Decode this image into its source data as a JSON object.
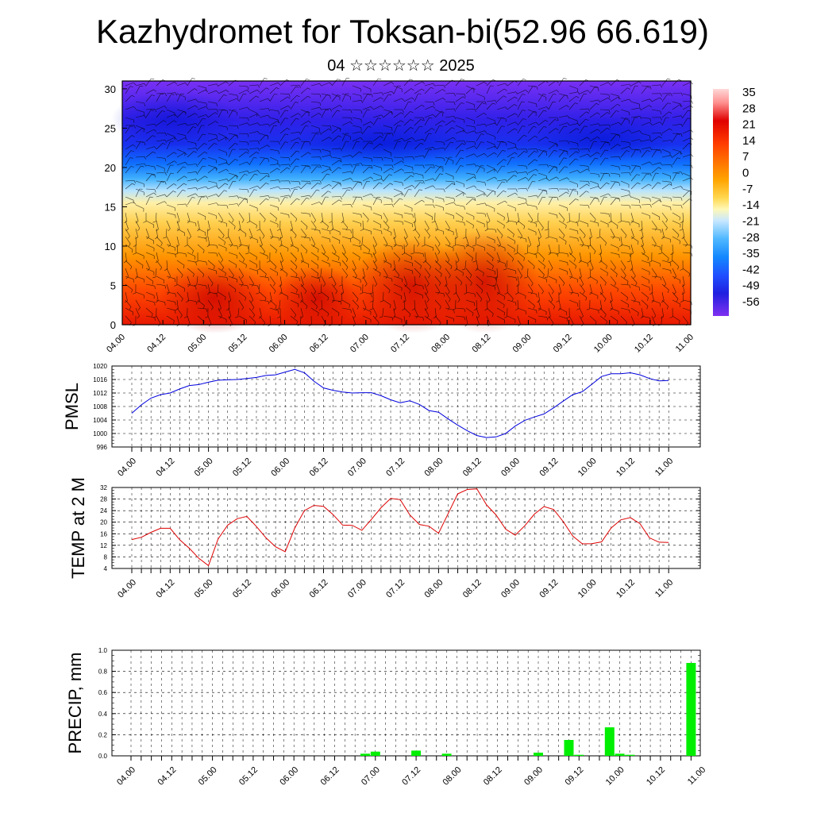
{
  "header": {
    "title": "Kazhydromet for Toksan-bi(52.96 66.619)",
    "subtitle": "04 ☆☆☆☆☆☆ 2025"
  },
  "chart_data": [
    {
      "type": "heatmap",
      "title": "",
      "xlabel": "",
      "ylabel": "",
      "x_tick_labels": [
        "04.00",
        "04.12",
        "05.00",
        "05.12",
        "06.00",
        "06.12",
        "07.00",
        "07.12",
        "08.00",
        "08.12",
        "09.00",
        "09.12",
        "10.00",
        "10.12",
        "11.00"
      ],
      "y_ticks": [
        0,
        5,
        10,
        15,
        20,
        25,
        30
      ],
      "ylim": [
        0,
        31
      ],
      "colorbar_labels": [
        "35",
        "28",
        "21",
        "14",
        "7",
        "0",
        "-7",
        "-14",
        "-21",
        "-28",
        "-35",
        "-42",
        "-49",
        "-56"
      ],
      "colorscale": [
        "#ffffff",
        "#ff8888",
        "#e00000",
        "#ff3000",
        "#ff7000",
        "#ffa000",
        "#ffd040",
        "#fff8b0",
        "#c8e8ff",
        "#60c0ff",
        "#1090ff",
        "#2050ff",
        "#2020e0",
        "#6020ff",
        "#8030f0"
      ],
      "overlay": "wind barbs and contour lines",
      "approx_level_temperature_c": [
        {
          "level": 0,
          "temp": 18
        },
        {
          "level": 5,
          "temp": 14
        },
        {
          "level": 10,
          "temp": 4
        },
        {
          "level": 15,
          "temp": -10
        },
        {
          "level": 20,
          "temp": -40
        },
        {
          "level": 25,
          "temp": -52
        },
        {
          "level": 30,
          "temp": -58
        }
      ]
    },
    {
      "type": "line",
      "title": "",
      "ylabel": "PMSL",
      "xlabel": "",
      "ylim": [
        996,
        1020
      ],
      "y_ticks": [
        996,
        1000,
        1004,
        1008,
        1012,
        1016,
        1020
      ],
      "x_tick_labels": [
        "04.00",
        "04.12",
        "05.00",
        "05.12",
        "06.00",
        "06.12",
        "07.00",
        "07.12",
        "08.00",
        "08.12",
        "09.00",
        "09.12",
        "10.00",
        "10.12",
        "11.00"
      ],
      "color": "#0000dd",
      "series": [
        {
          "values": [
            1006,
            1008.5,
            1010.5,
            1011.5,
            1012,
            1013.2,
            1014.2,
            1014.5,
            1015.2,
            1015.8,
            1015.9,
            1016,
            1016.3,
            1016.6,
            1017.2,
            1017.4,
            1018.2,
            1019,
            1018,
            1015.5,
            1013.5,
            1012.8,
            1012.3,
            1012,
            1012.1,
            1012.1,
            1011.2,
            1010,
            1009.1,
            1009.7,
            1008.6,
            1006.8,
            1006.3,
            1004.3,
            1002.5,
            1000.8,
            999.4,
            998.8,
            999,
            1000,
            1002.2,
            1003.9,
            1004.9,
            1005.8,
            1007.6,
            1009.6,
            1011.5,
            1012.4,
            1014.6,
            1016.9,
            1017.7,
            1017.7,
            1018,
            1017.4,
            1016.3,
            1015.6,
            1015.7
          ]
        }
      ]
    },
    {
      "type": "line",
      "title": "",
      "ylabel": "TEMP at 2 M",
      "xlabel": "",
      "ylim": [
        4,
        32
      ],
      "y_ticks": [
        4,
        8,
        12,
        16,
        20,
        24,
        28,
        32
      ],
      "x_tick_labels": [
        "04.00",
        "04.12",
        "05.00",
        "05.12",
        "06.00",
        "06.12",
        "07.00",
        "07.12",
        "08.00",
        "08.12",
        "09.00",
        "09.12",
        "10.00",
        "10.12",
        "11.00"
      ],
      "color": "#dd0000",
      "series": [
        {
          "values": [
            14,
            14.8,
            16.5,
            17.9,
            17.9,
            13.9,
            11,
            7.5,
            5,
            14.2,
            19,
            21.2,
            22,
            18.5,
            14.6,
            11.5,
            9.8,
            18,
            24,
            25.8,
            25.5,
            22.6,
            19,
            18.9,
            17.2,
            21,
            25,
            28.2,
            27.8,
            22.5,
            19.2,
            18.6,
            16.2,
            23,
            29.8,
            31.3,
            31.5,
            26,
            22.5,
            17.6,
            15.5,
            18.8,
            22.8,
            25.4,
            24.4,
            20.2,
            15.2,
            12.5,
            12.6,
            13.2,
            18,
            20.8,
            21.6,
            19.5,
            14.6,
            13.1,
            13
          ]
        }
      ]
    },
    {
      "type": "bar",
      "title": "",
      "ylabel": "PRECIP, mm",
      "xlabel": "",
      "ylim": [
        0,
        1.0
      ],
      "y_ticks": [
        0.0,
        0.2,
        0.4,
        0.6,
        0.8,
        1.0
      ],
      "y_tick_labels": [
        "0.0",
        "0.2",
        "0.4",
        "0.6",
        "0.8",
        "1.0"
      ],
      "x_tick_labels": [
        "04.00",
        "04.12",
        "05.00",
        "05.12",
        "06.00",
        "06.12",
        "07.00",
        "07.12",
        "08.00",
        "08.12",
        "09.00",
        "09.12",
        "10.00",
        "10.12",
        "11.00"
      ],
      "color": "#00ee00",
      "values": [
        0,
        0,
        0,
        0,
        0,
        0,
        0,
        0,
        0,
        0,
        0,
        0,
        0,
        0,
        0,
        0,
        0,
        0,
        0,
        0,
        0,
        0,
        0,
        0.02,
        0.04,
        0,
        0,
        0,
        0.05,
        0,
        0,
        0.02,
        0,
        0,
        0,
        0,
        0,
        0,
        0,
        0,
        0.03,
        0,
        0,
        0.15,
        0.01,
        0,
        0,
        0.27,
        0.02,
        0.01,
        0,
        0,
        0,
        0,
        0,
        0.88
      ]
    }
  ]
}
